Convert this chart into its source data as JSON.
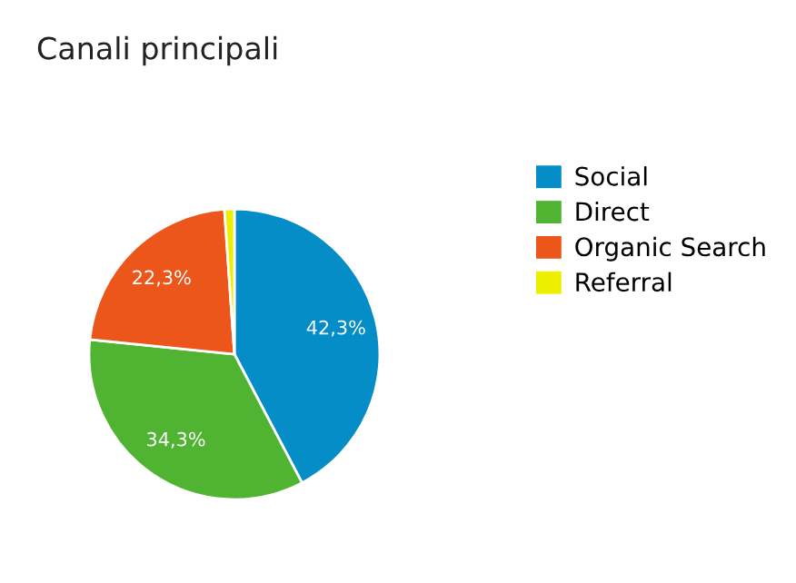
{
  "chart_data": {
    "type": "pie",
    "title": "Canali principali",
    "categories": [
      "Social",
      "Direct",
      "Organic Search",
      "Referral"
    ],
    "values": [
      42.3,
      34.3,
      22.3,
      1.1
    ],
    "colors": [
      "#058dc7",
      "#50b432",
      "#ed561b",
      "#edef00"
    ],
    "value_labels": [
      "42,3%",
      "34,3%",
      "22,3%",
      null
    ],
    "legend": "right"
  }
}
